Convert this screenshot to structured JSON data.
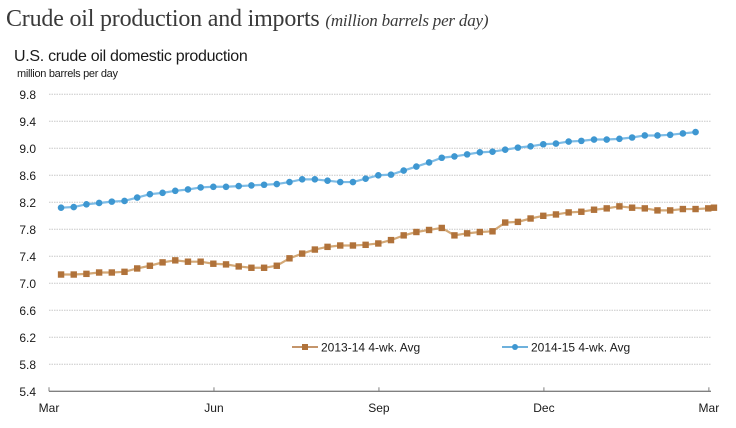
{
  "header": {
    "title": "Crude oil production and imports",
    "title_units": "(million barrels per day)",
    "subtitle": "U.S. crude oil domestic production",
    "unit_label": "million barrels per day"
  },
  "chart_data": {
    "type": "line",
    "title": "U.S. crude oil domestic production",
    "xlabel": "",
    "ylabel": "million barrels per day",
    "ylim": [
      5.4,
      9.8
    ],
    "yticks": [
      5.4,
      5.8,
      6.2,
      6.6,
      7.0,
      7.4,
      7.8,
      8.2,
      8.6,
      9.0,
      9.4,
      9.8
    ],
    "ytick_labels": [
      "5.4",
      "5.8",
      "6.2",
      "6.6",
      "7.0",
      "7.4",
      "7.8",
      "8.2",
      "8.6",
      "9.0",
      "9.4",
      "9.8"
    ],
    "x_unit": "weeks since start of March",
    "xlim": [
      0,
      52.3
    ],
    "xticks": [
      0,
      13,
      26,
      39,
      52
    ],
    "xtick_labels": [
      "Mar",
      "Jun",
      "Sep",
      "Dec",
      "Mar"
    ],
    "grid": "horizontal dotted",
    "legend_position": "bottom-center",
    "series": [
      {
        "name": "2013-14  4-wk. Avg",
        "color": "#B0723A",
        "line_color": "#D3A876",
        "marker": "square",
        "x": [
          0.95,
          1.95,
          2.95,
          3.95,
          4.95,
          5.95,
          6.95,
          7.95,
          8.95,
          9.95,
          10.95,
          11.95,
          12.95,
          13.95,
          14.95,
          15.95,
          16.95,
          17.95,
          18.95,
          19.95,
          20.95,
          21.95,
          22.95,
          23.95,
          24.95,
          25.95,
          26.95,
          27.95,
          28.95,
          29.95,
          30.95,
          31.95,
          32.95,
          33.95,
          34.95,
          35.95,
          36.95,
          37.95,
          38.95,
          39.95,
          40.95,
          41.95,
          42.95,
          43.95,
          44.95,
          45.95,
          46.95,
          47.95,
          48.95,
          49.95,
          50.95,
          51.95,
          52.4
        ],
        "values": [
          7.13,
          7.13,
          7.14,
          7.16,
          7.16,
          7.17,
          7.22,
          7.26,
          7.31,
          7.34,
          7.32,
          7.32,
          7.29,
          7.28,
          7.25,
          7.23,
          7.23,
          7.26,
          7.37,
          7.44,
          7.5,
          7.54,
          7.56,
          7.56,
          7.57,
          7.59,
          7.64,
          7.71,
          7.76,
          7.79,
          7.82,
          7.71,
          7.74,
          7.76,
          7.77,
          7.9,
          7.91,
          7.96,
          8.0,
          8.02,
          8.05,
          8.06,
          8.09,
          8.11,
          8.14,
          8.12,
          8.11,
          8.08,
          8.08,
          8.1,
          8.1,
          8.11,
          8.12
        ]
      },
      {
        "name": "2014-15  4-wk. Avg",
        "color": "#3E97D1",
        "line_color": "#7DBCE6",
        "marker": "circle",
        "x": [
          0.95,
          1.95,
          2.95,
          3.95,
          4.95,
          5.95,
          6.95,
          7.95,
          8.95,
          9.95,
          10.95,
          11.95,
          12.95,
          13.95,
          14.95,
          15.95,
          16.95,
          17.95,
          18.95,
          19.95,
          20.95,
          21.95,
          22.95,
          23.95,
          24.95,
          25.95,
          26.95,
          27.95,
          28.95,
          29.95,
          30.95,
          31.95,
          32.95,
          33.95,
          34.95,
          35.95,
          36.95,
          37.95,
          38.95,
          39.95,
          40.95,
          41.95,
          42.95,
          43.95,
          44.95,
          45.95,
          46.95,
          47.95,
          48.95,
          49.95,
          50.95
        ],
        "values": [
          8.12,
          8.13,
          8.17,
          8.19,
          8.21,
          8.22,
          8.27,
          8.32,
          8.34,
          8.37,
          8.39,
          8.42,
          8.43,
          8.43,
          8.44,
          8.45,
          8.46,
          8.47,
          8.5,
          8.54,
          8.54,
          8.52,
          8.5,
          8.5,
          8.55,
          8.6,
          8.61,
          8.67,
          8.73,
          8.79,
          8.86,
          8.88,
          8.91,
          8.94,
          8.95,
          8.98,
          9.01,
          9.03,
          9.06,
          9.07,
          9.1,
          9.11,
          9.13,
          9.13,
          9.14,
          9.16,
          9.19,
          9.19,
          9.2,
          9.22,
          9.24
        ]
      }
    ]
  }
}
